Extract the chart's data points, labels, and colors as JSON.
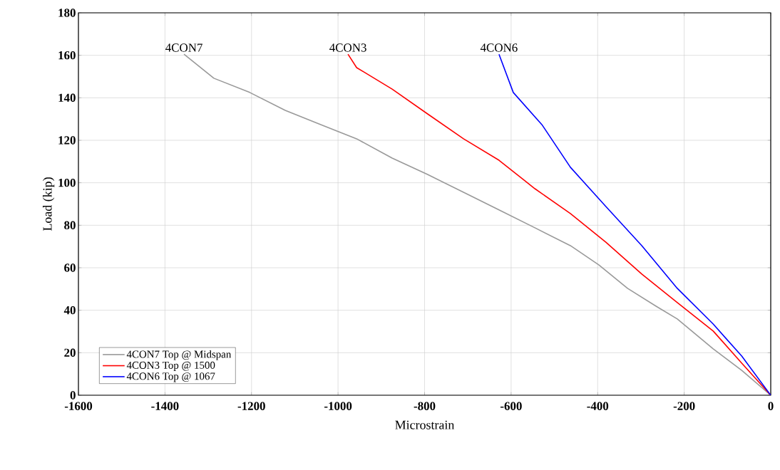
{
  "chart_data": {
    "type": "line",
    "xlabel": "Microstrain",
    "ylabel": "Load (kip)",
    "xlim": [
      -1600,
      0
    ],
    "ylim": [
      0,
      180
    ],
    "xticks": [
      -1600,
      -1400,
      -1200,
      -1000,
      -800,
      -600,
      -400,
      -200,
      0
    ],
    "yticks": [
      0,
      20,
      40,
      60,
      80,
      100,
      120,
      140,
      160,
      180
    ],
    "grid": true,
    "legend": "bottom left",
    "marker": "none",
    "line_style": "solid",
    "series": [
      {
        "name": "4CON7 Top @ Midspan",
        "color": "#999999",
        "x": [
          0,
          -67,
          -133,
          -216,
          -265,
          -331,
          -397,
          -463,
          -545,
          -628,
          -710,
          -793,
          -875,
          -957,
          -1040,
          -1122,
          -1204,
          -1287,
          -1356
        ],
        "values": [
          0,
          11.7,
          21.8,
          35.9,
          41.9,
          50.3,
          61.3,
          70.4,
          78.8,
          87.2,
          95.5,
          103.9,
          111.6,
          120.7,
          127.4,
          134.1,
          142.5,
          149.2,
          160.5
        ]
      },
      {
        "name": "4CON3 Top @ 1500",
        "color": "#ff0000",
        "x": [
          0,
          -67,
          -133,
          -216,
          -298,
          -381,
          -463,
          -545,
          -628,
          -710,
          -793,
          -875,
          -957,
          -977
        ],
        "values": [
          0,
          15.1,
          30.2,
          43.6,
          57,
          72,
          85.5,
          97.2,
          110.6,
          120.7,
          132.4,
          144.1,
          154.2,
          160.5
        ]
      },
      {
        "name": "4CON6 Top @ 1067",
        "color": "#0000ff",
        "x": [
          0,
          -67,
          -133,
          -216,
          -298,
          -381,
          -463,
          -529,
          -595,
          -628
        ],
        "values": [
          0,
          18.4,
          33.5,
          50.3,
          70.4,
          88.8,
          107.3,
          127.4,
          142.5,
          160.5
        ]
      }
    ],
    "annotations": [
      {
        "text": "4CON7",
        "x": -1356,
        "y": 160.5
      },
      {
        "text": "4CON3",
        "x": -977,
        "y": 160.5
      },
      {
        "text": "4CON6",
        "x": -628,
        "y": 160.5
      }
    ]
  }
}
